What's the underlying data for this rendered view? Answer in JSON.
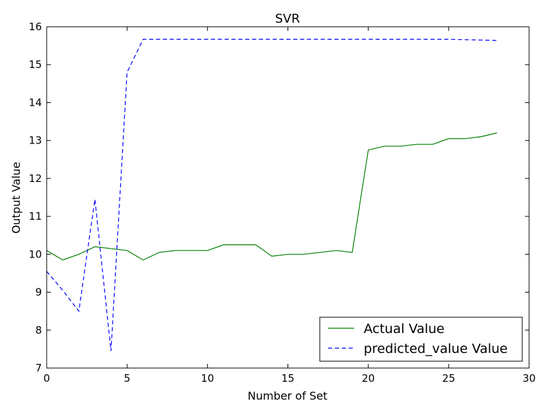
{
  "chart_data": {
    "type": "line",
    "title": "SVR",
    "xlabel": "Number of Set",
    "ylabel": "Output Value",
    "xlim": [
      0,
      30
    ],
    "ylim": [
      7,
      16
    ],
    "xticks": [
      0,
      5,
      10,
      15,
      20,
      25,
      30
    ],
    "yticks": [
      7,
      8,
      9,
      10,
      11,
      12,
      13,
      14,
      15,
      16
    ],
    "grid": false,
    "legend_position": "bottom-right",
    "x": [
      0,
      1,
      2,
      3,
      4,
      5,
      6,
      7,
      8,
      9,
      10,
      11,
      12,
      13,
      14,
      15,
      16,
      17,
      18,
      19,
      20,
      21,
      22,
      23,
      24,
      25,
      26,
      27,
      28
    ],
    "series": [
      {
        "name": "Actual Value",
        "color": "#008000",
        "style": "solid",
        "values": [
          10.1,
          9.85,
          10.0,
          10.2,
          10.15,
          10.1,
          9.85,
          10.05,
          10.1,
          10.1,
          10.1,
          10.25,
          10.25,
          10.25,
          9.95,
          10.0,
          10.0,
          10.05,
          10.1,
          10.05,
          12.75,
          12.85,
          12.85,
          12.9,
          12.9,
          13.05,
          13.05,
          13.1,
          13.2
        ]
      },
      {
        "name": "predicted_value Value",
        "color": "#0000ff",
        "style": "dashed",
        "values": [
          9.55,
          9.05,
          8.5,
          11.45,
          7.45,
          14.8,
          15.67,
          15.67,
          15.67,
          15.67,
          15.67,
          15.67,
          15.67,
          15.67,
          15.67,
          15.67,
          15.67,
          15.67,
          15.67,
          15.67,
          15.67,
          15.67,
          15.67,
          15.67,
          15.67,
          15.67,
          15.66,
          15.65,
          15.64
        ]
      }
    ]
  }
}
